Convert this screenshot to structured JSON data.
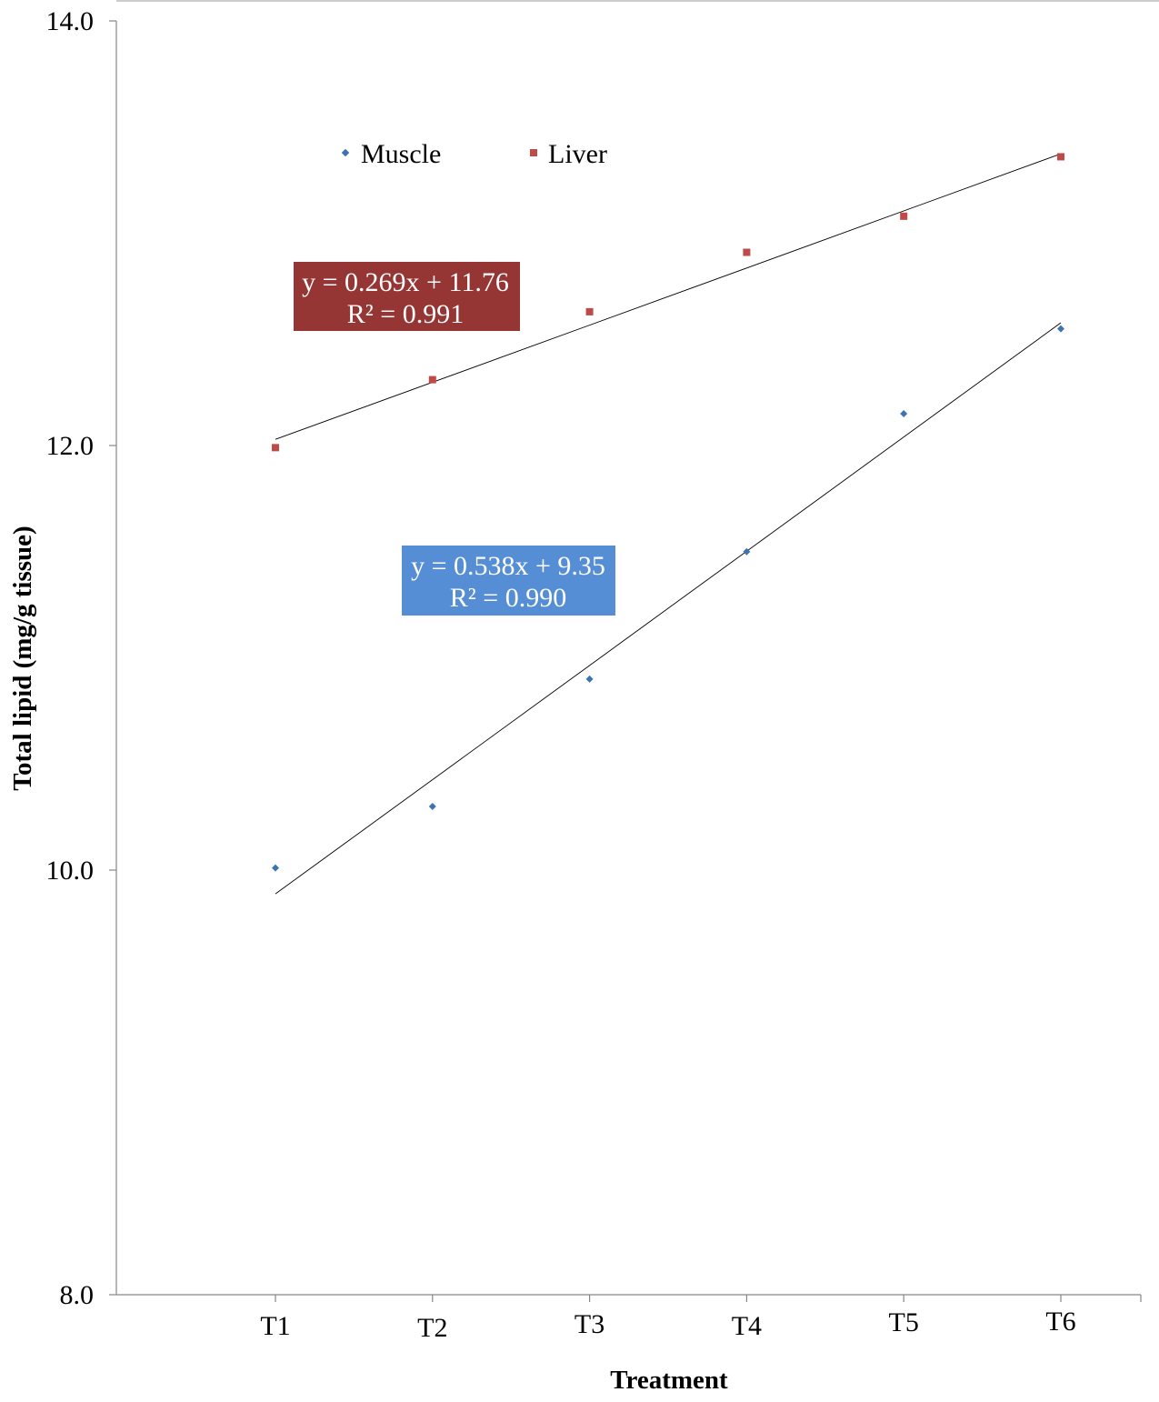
{
  "colors": {
    "muscle": "#3f72b0",
    "liver": "#be4b48",
    "liver_box": "#953634",
    "muscle_box": "#558ed5",
    "axis": "#868686",
    "trendline": "#000000"
  },
  "chart_data": {
    "type": "scatter",
    "title": "",
    "xlabel": "Treatment",
    "ylabel": "Total lipid (mg/g tissue)",
    "categories": [
      "T1",
      "T2",
      "T3",
      "T4",
      "T5",
      "T6"
    ],
    "ylim": [
      8.0,
      14.0
    ],
    "yticks": [
      "8.0",
      "10.0",
      "12.0",
      "14.0"
    ],
    "ytick_values": [
      8.0,
      10.0,
      12.0,
      14.0
    ],
    "grid": false,
    "legend_position": "top-center",
    "series": [
      {
        "name": "Muscle",
        "marker": "diamond",
        "values": [
          10.01,
          10.3,
          10.9,
          11.5,
          12.15,
          12.55
        ],
        "trendline": {
          "slope": 0.538,
          "intercept": 9.35,
          "equation": "y = 0.538x + 9.35",
          "r2": "R² = 0.990"
        }
      },
      {
        "name": "Liver",
        "marker": "square",
        "values": [
          11.99,
          12.31,
          12.63,
          12.91,
          13.08,
          13.36
        ],
        "trendline": {
          "slope": 0.269,
          "intercept": 11.76,
          "equation": "y = 0.269x + 11.76",
          "r2": "R² = 0.991"
        }
      }
    ]
  }
}
